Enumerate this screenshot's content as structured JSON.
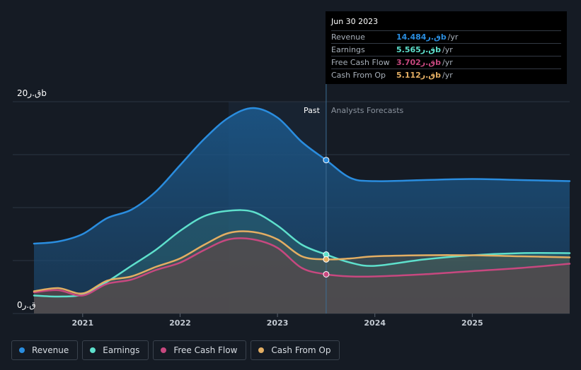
{
  "chart_data": {
    "type": "line",
    "y_max_label": "20ق.رb",
    "y_min_label": "0ق.ر",
    "ylim": [
      0,
      20
    ],
    "xlim": [
      2020.5,
      2026.0
    ],
    "x_ticks": [
      2021,
      2022,
      2023,
      2024,
      2025
    ],
    "x_tick_labels": [
      "2021",
      "2022",
      "2023",
      "2024",
      "2025"
    ],
    "past_label": "Past",
    "forecast_label": "Analysts Forecasts",
    "divider_x": 2023.5,
    "series": [
      {
        "name": "Revenue",
        "color": "#2a8ddf",
        "fill": true,
        "points": [
          [
            2020.5,
            6.6
          ],
          [
            2020.75,
            6.8
          ],
          [
            2021.0,
            7.5
          ],
          [
            2021.25,
            9.0
          ],
          [
            2021.5,
            9.8
          ],
          [
            2021.75,
            11.5
          ],
          [
            2022.0,
            14.0
          ],
          [
            2022.25,
            16.5
          ],
          [
            2022.5,
            18.5
          ],
          [
            2022.75,
            19.4
          ],
          [
            2023.0,
            18.5
          ],
          [
            2023.25,
            16.2
          ],
          [
            2023.5,
            14.484
          ],
          [
            2023.75,
            12.8
          ],
          [
            2024.0,
            12.5
          ],
          [
            2024.5,
            12.6
          ],
          [
            2025.0,
            12.7
          ],
          [
            2025.5,
            12.6
          ],
          [
            2026.0,
            12.5
          ]
        ]
      },
      {
        "name": "Earnings",
        "color": "#5ee0cc",
        "fill": true,
        "points": [
          [
            2020.5,
            1.7
          ],
          [
            2020.75,
            1.6
          ],
          [
            2021.0,
            1.8
          ],
          [
            2021.25,
            3.0
          ],
          [
            2021.5,
            4.5
          ],
          [
            2021.75,
            6.0
          ],
          [
            2022.0,
            7.8
          ],
          [
            2022.25,
            9.2
          ],
          [
            2022.5,
            9.7
          ],
          [
            2022.75,
            9.6
          ],
          [
            2023.0,
            8.3
          ],
          [
            2023.25,
            6.5
          ],
          [
            2023.5,
            5.565
          ],
          [
            2023.75,
            4.8
          ],
          [
            2024.0,
            4.5
          ],
          [
            2024.5,
            5.1
          ],
          [
            2025.0,
            5.5
          ],
          [
            2025.5,
            5.7
          ],
          [
            2026.0,
            5.7
          ]
        ]
      },
      {
        "name": "Free Cash Flow",
        "color": "#c7487f",
        "fill": true,
        "points": [
          [
            2020.5,
            2.0
          ],
          [
            2020.75,
            2.2
          ],
          [
            2021.0,
            1.7
          ],
          [
            2021.25,
            2.8
          ],
          [
            2021.5,
            3.2
          ],
          [
            2021.75,
            4.1
          ],
          [
            2022.0,
            4.8
          ],
          [
            2022.25,
            6.0
          ],
          [
            2022.5,
            7.0
          ],
          [
            2022.75,
            7.0
          ],
          [
            2023.0,
            6.2
          ],
          [
            2023.25,
            4.3
          ],
          [
            2023.5,
            3.702
          ],
          [
            2023.75,
            3.5
          ],
          [
            2024.0,
            3.5
          ],
          [
            2024.5,
            3.7
          ],
          [
            2025.0,
            4.0
          ],
          [
            2025.5,
            4.3
          ],
          [
            2026.0,
            4.7
          ]
        ]
      },
      {
        "name": "Cash From Op",
        "color": "#e3ae63",
        "fill": true,
        "points": [
          [
            2020.5,
            2.1
          ],
          [
            2020.75,
            2.4
          ],
          [
            2021.0,
            1.9
          ],
          [
            2021.25,
            3.1
          ],
          [
            2021.5,
            3.5
          ],
          [
            2021.75,
            4.4
          ],
          [
            2022.0,
            5.2
          ],
          [
            2022.25,
            6.5
          ],
          [
            2022.5,
            7.6
          ],
          [
            2022.75,
            7.7
          ],
          [
            2023.0,
            7.0
          ],
          [
            2023.25,
            5.4
          ],
          [
            2023.5,
            5.112
          ],
          [
            2023.75,
            5.2
          ],
          [
            2024.0,
            5.4
          ],
          [
            2024.5,
            5.5
          ],
          [
            2025.0,
            5.5
          ],
          [
            2025.5,
            5.4
          ],
          [
            2026.0,
            5.3
          ]
        ]
      }
    ]
  },
  "tooltip": {
    "date": "Jun 30 2023",
    "rows": [
      {
        "name": "Revenue",
        "value": "14.484ق.رb",
        "unit": "/yr",
        "color": "#2a8ddf"
      },
      {
        "name": "Earnings",
        "value": "5.565ق.رb",
        "unit": "/yr",
        "color": "#5ee0cc"
      },
      {
        "name": "Free Cash Flow",
        "value": "3.702ق.رb",
        "unit": "/yr",
        "color": "#c7487f"
      },
      {
        "name": "Cash From Op",
        "value": "5.112ق.رb",
        "unit": "/yr",
        "color": "#e3ae63"
      }
    ]
  },
  "legend": [
    {
      "label": "Revenue",
      "color": "#2a8ddf"
    },
    {
      "label": "Earnings",
      "color": "#5ee0cc"
    },
    {
      "label": "Free Cash Flow",
      "color": "#c7487f"
    },
    {
      "label": "Cash From Op",
      "color": "#e3ae63"
    }
  ]
}
